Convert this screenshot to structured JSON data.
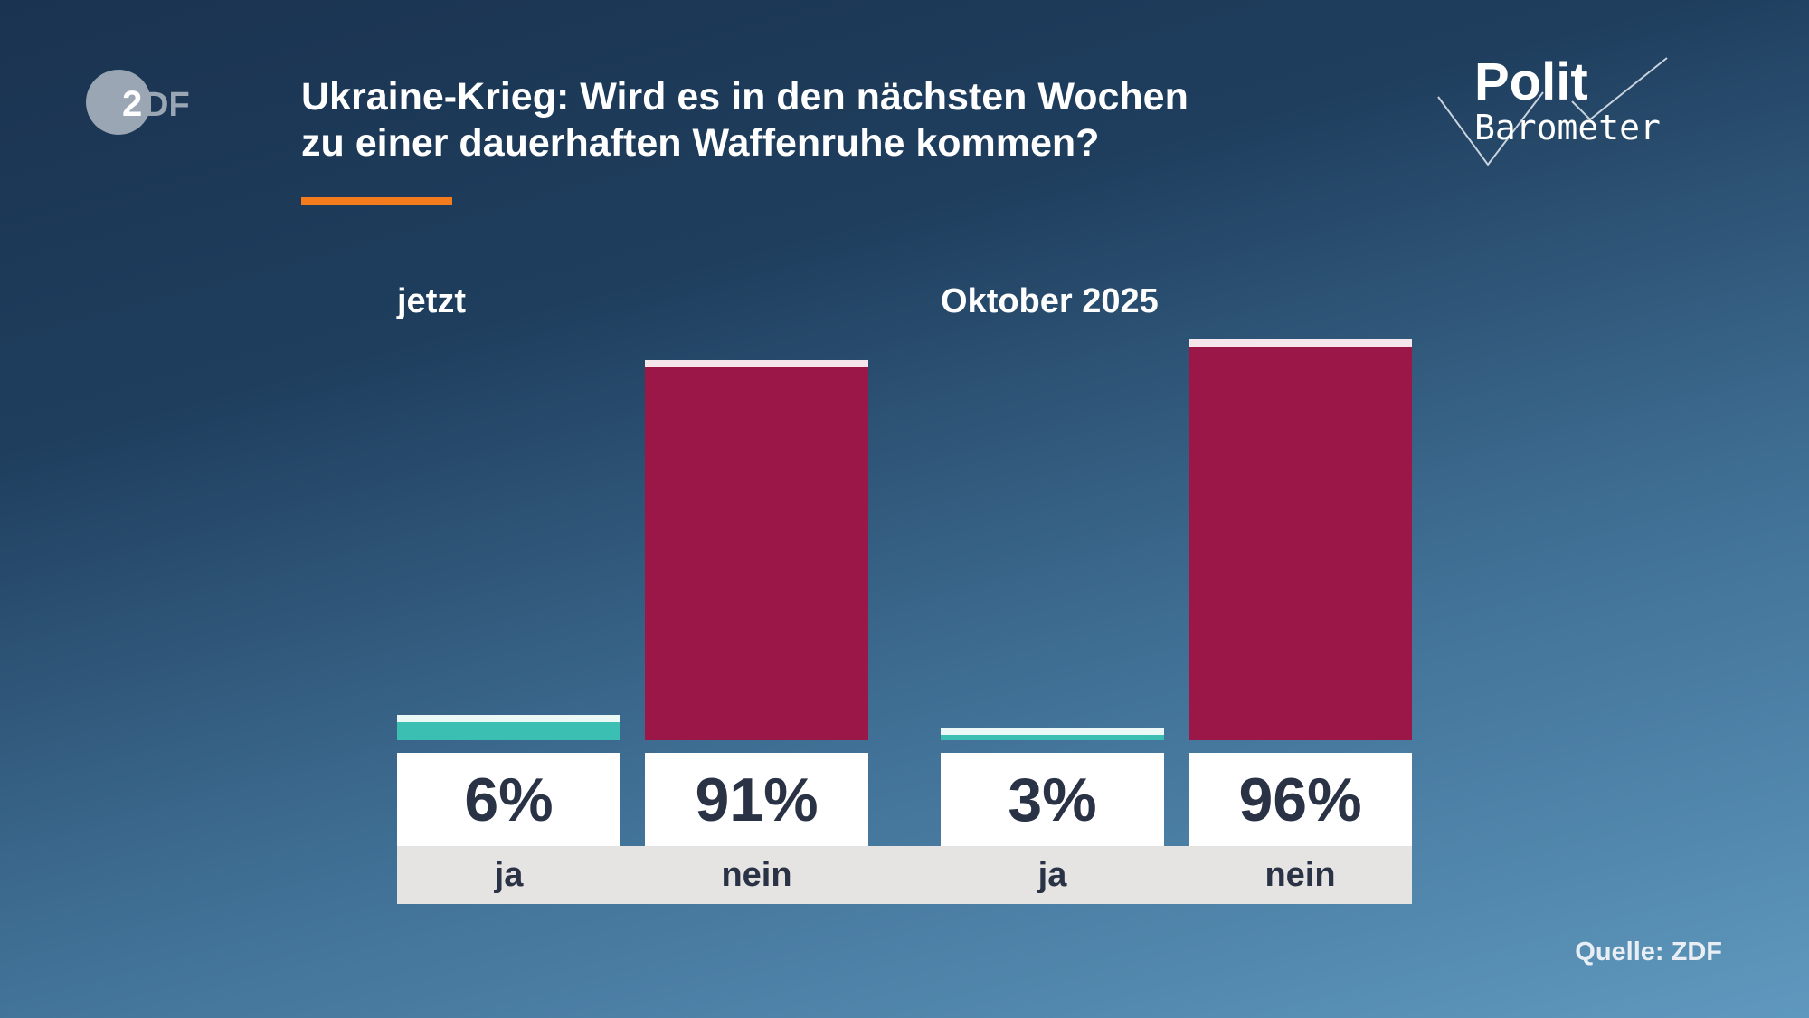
{
  "logo": {
    "text": "ZDF"
  },
  "title": {
    "line1": "Ukraine-Krieg: Wird es in den nächsten Wochen",
    "line2": "zu einer dauerhaften Waffenruhe kommen?"
  },
  "brand": {
    "line1": "Polit",
    "line2": "Barometer"
  },
  "source": "Quelle: ZDF",
  "colors": {
    "ja": "#3bbfb2",
    "nein": "#9a1748",
    "accent": "#f47c1e"
  },
  "chart_data": {
    "type": "bar",
    "title": "Ukraine-Krieg: Wird es in den nächsten Wochen zu einer dauerhaften Waffenruhe kommen?",
    "unit": "%",
    "ylim": [
      0,
      100
    ],
    "groups": [
      {
        "label": "jetzt",
        "bars": [
          {
            "category": "ja",
            "value": 6,
            "label": "6%"
          },
          {
            "category": "nein",
            "value": 91,
            "label": "91%"
          }
        ]
      },
      {
        "label": "Oktober 2025",
        "bars": [
          {
            "category": "ja",
            "value": 3,
            "label": "3%"
          },
          {
            "category": "nein",
            "value": 96,
            "label": "96%"
          }
        ]
      }
    ]
  }
}
